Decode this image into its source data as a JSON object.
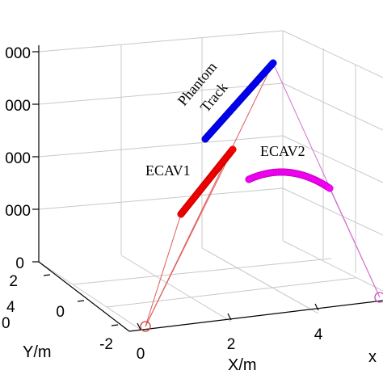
{
  "chart_data": {
    "type": "scatter",
    "projection": "3d",
    "grid": true,
    "z_ticks": [
      "000",
      "000",
      "000",
      "000",
      "0"
    ],
    "y_ticks": [
      "2",
      "0",
      "-2"
    ],
    "x_ticks": [
      "0",
      "2",
      "4"
    ],
    "y_exponent": "4",
    "partial_y_exponent": "0",
    "ylabel": "Y/m",
    "xlabel": "X/m",
    "corner_label": "x",
    "annotations": [
      {
        "name": "phantom-track-label",
        "text": "Phantom"
      },
      {
        "name": "phantom-track-label-2",
        "text": "Track"
      },
      {
        "name": "ecav1-label",
        "text": "ECAV1"
      },
      {
        "name": "ecav2-label",
        "text": "ECAV2"
      }
    ],
    "series": [
      {
        "name": "Phantom Track",
        "color": "#0000ff",
        "kind": "linear"
      },
      {
        "name": "ECAV1",
        "color": "#ff0000",
        "kind": "linear"
      },
      {
        "name": "ECAV2",
        "color": "#ff00ff",
        "kind": "arc"
      }
    ],
    "colors": {
      "phantom": "#0000ff",
      "ecav1": "#ff0000",
      "ecav2": "#ff00ff",
      "red_line": "#e05a5a",
      "magenta_line": "#d070d0",
      "grid": "#c8c8c8",
      "axis": "#000000"
    }
  }
}
